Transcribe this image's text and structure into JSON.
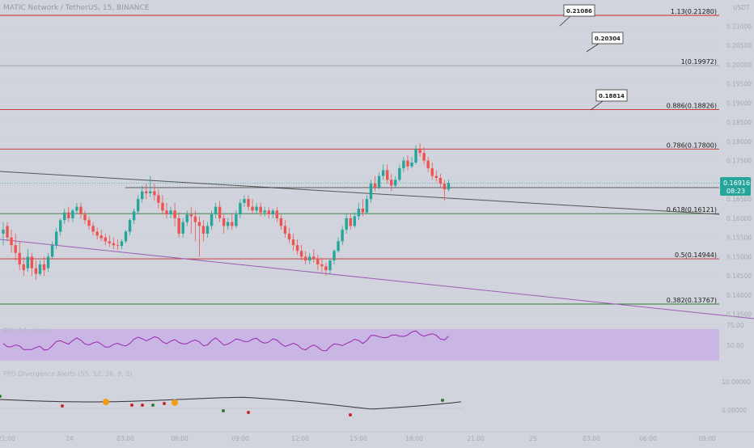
{
  "header": {
    "symbol_title": "MATIC Network / TetherUS, 15, BINANCE",
    "currency": "USDT"
  },
  "colors": {
    "background": "#d1d4dc",
    "fib_red": "#c62828",
    "fib_green": "#2e7d32",
    "fib_gray": "#9e9e9e",
    "candle_up": "#26a69a",
    "candle_down": "#ef5350",
    "trendline_dark": "#555555",
    "trendline_purple": "#9c5fb5",
    "rsi_line": "#9c27b0",
    "rsi_band": "#c9b6e4",
    "price_badge": "#26a69a",
    "ppo_line": "#333333"
  },
  "price_badge": {
    "price": "0.16916",
    "countdown": "08:23"
  },
  "fib_levels": [
    {
      "label": "1.13(0.21280)",
      "price": 0.2128,
      "color": "#c62828"
    },
    {
      "label": "1(0.19972)",
      "price": 0.19972,
      "color": "#9e9e9e"
    },
    {
      "label": "0.886(0.18826)",
      "price": 0.18826,
      "color": "#c62828"
    },
    {
      "label": "0.786(0.17800)",
      "price": 0.178,
      "color": "#c62828"
    },
    {
      "label": "0.618(0.16121)",
      "price": 0.16121,
      "color": "#2e7d32"
    },
    {
      "label": "0.5(0.14944)",
      "price": 0.14944,
      "color": "#c62828"
    },
    {
      "label": "0.382(0.13767)",
      "price": 0.13767,
      "color": "#2e7d32"
    }
  ],
  "callouts": [
    {
      "text": "0.21086"
    },
    {
      "text": "0.20304"
    },
    {
      "text": "0.18814"
    }
  ],
  "right_axis_ticks": [
    "0.21000",
    "0.20500",
    "0.20000",
    "0.19500",
    "0.19000",
    "0.18500",
    "0.18000",
    "0.17500",
    "0.17000",
    "0.16500",
    "0.16000",
    "0.15500",
    "0.15000",
    "0.14500",
    "0.14000",
    "0.13500"
  ],
  "time_axis_ticks": [
    "21:00",
    "24",
    "03:00",
    "06:00",
    "09:00",
    "12:00",
    "15:00",
    "18:00",
    "21:00",
    "25",
    "03:00",
    "06:00",
    "09:00"
  ],
  "rsi": {
    "title": "RSI (14, close)",
    "axis": [
      "75.00",
      "50.00"
    ]
  },
  "ppo": {
    "title": "PPO Divergence Alerts (55, 12, 26, 9, 2)",
    "axis": [
      "10.00000",
      "0.00000"
    ]
  },
  "chart_data": {
    "type": "candlestick",
    "timeframe": "15",
    "y_axis_range": [
      0.1322,
      0.2165
    ],
    "last_price": 0.16916,
    "candles": [
      [
        0.156,
        0.159,
        0.157,
        0.153
      ],
      [
        0.158,
        0.159,
        0.155,
        0.154
      ],
      [
        0.155,
        0.157,
        0.153,
        0.151
      ],
      [
        0.153,
        0.156,
        0.151,
        0.149
      ],
      [
        0.151,
        0.154,
        0.148,
        0.1465
      ],
      [
        0.148,
        0.15,
        0.1465,
        0.145
      ],
      [
        0.147,
        0.152,
        0.15,
        0.146
      ],
      [
        0.15,
        0.151,
        0.147,
        0.145
      ],
      [
        0.147,
        0.149,
        0.1455,
        0.144
      ],
      [
        0.1455,
        0.149,
        0.148,
        0.145
      ],
      [
        0.148,
        0.15,
        0.1465,
        0.145
      ],
      [
        0.147,
        0.151,
        0.15,
        0.146
      ],
      [
        0.15,
        0.154,
        0.153,
        0.1495
      ],
      [
        0.153,
        0.1575,
        0.1565,
        0.152
      ],
      [
        0.1565,
        0.16,
        0.1595,
        0.1555
      ],
      [
        0.1595,
        0.1625,
        0.1615,
        0.1585
      ],
      [
        0.1615,
        0.163,
        0.16,
        0.159
      ],
      [
        0.16,
        0.1625,
        0.162,
        0.159
      ],
      [
        0.162,
        0.164,
        0.163,
        0.161
      ],
      [
        0.163,
        0.164,
        0.161,
        0.16
      ],
      [
        0.161,
        0.162,
        0.1595,
        0.1585
      ],
      [
        0.1595,
        0.1605,
        0.158,
        0.157
      ],
      [
        0.158,
        0.159,
        0.1565,
        0.1555
      ],
      [
        0.1565,
        0.1575,
        0.1555,
        0.1545
      ],
      [
        0.1555,
        0.157,
        0.1548,
        0.154
      ],
      [
        0.155,
        0.156,
        0.154,
        0.153
      ],
      [
        0.154,
        0.1555,
        0.1535,
        0.1525
      ],
      [
        0.1535,
        0.155,
        0.153,
        0.152
      ],
      [
        0.153,
        0.1545,
        0.1528,
        0.1518
      ],
      [
        0.1528,
        0.1545,
        0.154,
        0.152
      ],
      [
        0.154,
        0.157,
        0.1565,
        0.1535
      ],
      [
        0.1565,
        0.16,
        0.1595,
        0.1555
      ],
      [
        0.1595,
        0.1625,
        0.1618,
        0.1585
      ],
      [
        0.1618,
        0.166,
        0.165,
        0.161
      ],
      [
        0.165,
        0.1685,
        0.167,
        0.164
      ],
      [
        0.167,
        0.169,
        0.1665,
        0.165
      ],
      [
        0.1665,
        0.171,
        0.167,
        0.1655
      ],
      [
        0.167,
        0.169,
        0.166,
        0.1645
      ],
      [
        0.166,
        0.1675,
        0.164,
        0.1625
      ],
      [
        0.164,
        0.166,
        0.162,
        0.161
      ],
      [
        0.162,
        0.164,
        0.161,
        0.16
      ],
      [
        0.161,
        0.163,
        0.162,
        0.16
      ],
      [
        0.162,
        0.164,
        0.16,
        0.158
      ],
      [
        0.16,
        0.1615,
        0.156,
        0.155
      ],
      [
        0.156,
        0.16,
        0.159,
        0.155
      ],
      [
        0.159,
        0.162,
        0.161,
        0.158
      ],
      [
        0.161,
        0.163,
        0.1605,
        0.156
      ],
      [
        0.1605,
        0.162,
        0.159,
        0.154
      ],
      [
        0.159,
        0.1605,
        0.158,
        0.15
      ],
      [
        0.158,
        0.1595,
        0.156,
        0.154
      ],
      [
        0.156,
        0.159,
        0.158,
        0.155
      ],
      [
        0.158,
        0.162,
        0.161,
        0.157
      ],
      [
        0.161,
        0.164,
        0.163,
        0.16
      ],
      [
        0.163,
        0.1645,
        0.16,
        0.159
      ],
      [
        0.16,
        0.161,
        0.158,
        0.156
      ],
      [
        0.158,
        0.16,
        0.159,
        0.157
      ],
      [
        0.159,
        0.161,
        0.158,
        0.157
      ],
      [
        0.158,
        0.162,
        0.161,
        0.1575
      ],
      [
        0.161,
        0.165,
        0.164,
        0.16
      ],
      [
        0.164,
        0.166,
        0.165,
        0.163
      ],
      [
        0.165,
        0.166,
        0.163,
        0.162
      ],
      [
        0.163,
        0.165,
        0.162,
        0.161
      ],
      [
        0.162,
        0.164,
        0.163,
        0.161
      ],
      [
        0.163,
        0.164,
        0.1615,
        0.1605
      ],
      [
        0.1615,
        0.163,
        0.162,
        0.1605
      ],
      [
        0.162,
        0.163,
        0.161,
        0.16
      ],
      [
        0.161,
        0.1625,
        0.162,
        0.16
      ],
      [
        0.162,
        0.163,
        0.16,
        0.159
      ],
      [
        0.16,
        0.161,
        0.158,
        0.157
      ],
      [
        0.158,
        0.1595,
        0.156,
        0.155
      ],
      [
        0.156,
        0.1575,
        0.1545,
        0.1535
      ],
      [
        0.1545,
        0.156,
        0.153,
        0.1515
      ],
      [
        0.153,
        0.1545,
        0.1515,
        0.1505
      ],
      [
        0.1515,
        0.153,
        0.15,
        0.149
      ],
      [
        0.15,
        0.1515,
        0.149,
        0.148
      ],
      [
        0.149,
        0.151,
        0.15,
        0.148
      ],
      [
        0.15,
        0.152,
        0.1495,
        0.1485
      ],
      [
        0.1495,
        0.1505,
        0.148,
        0.1465
      ],
      [
        0.148,
        0.1495,
        0.1475,
        0.146
      ],
      [
        0.1475,
        0.1485,
        0.1465,
        0.145
      ],
      [
        0.1465,
        0.1495,
        0.149,
        0.1455
      ],
      [
        0.149,
        0.152,
        0.1515,
        0.148
      ],
      [
        0.1515,
        0.155,
        0.154,
        0.151
      ],
      [
        0.154,
        0.158,
        0.157,
        0.153
      ],
      [
        0.157,
        0.161,
        0.16,
        0.156
      ],
      [
        0.16,
        0.161,
        0.158,
        0.157
      ],
      [
        0.158,
        0.1615,
        0.1605,
        0.1575
      ],
      [
        0.1605,
        0.164,
        0.1625,
        0.1595
      ],
      [
        0.1625,
        0.165,
        0.1615,
        0.1605
      ],
      [
        0.1615,
        0.166,
        0.165,
        0.161
      ],
      [
        0.165,
        0.17,
        0.169,
        0.164
      ],
      [
        0.169,
        0.171,
        0.168,
        0.167
      ],
      [
        0.168,
        0.172,
        0.171,
        0.1675
      ],
      [
        0.171,
        0.174,
        0.1725,
        0.17
      ],
      [
        0.1725,
        0.174,
        0.17,
        0.169
      ],
      [
        0.17,
        0.1715,
        0.1685,
        0.167
      ],
      [
        0.1685,
        0.171,
        0.17,
        0.168
      ],
      [
        0.17,
        0.174,
        0.173,
        0.1695
      ],
      [
        0.173,
        0.176,
        0.175,
        0.172
      ],
      [
        0.175,
        0.1765,
        0.1735,
        0.1725
      ],
      [
        0.1735,
        0.176,
        0.1745,
        0.173
      ],
      [
        0.1745,
        0.179,
        0.178,
        0.174
      ],
      [
        0.178,
        0.1795,
        0.177,
        0.176
      ],
      [
        0.177,
        0.1785,
        0.175,
        0.174
      ],
      [
        0.175,
        0.176,
        0.173,
        0.172
      ],
      [
        0.173,
        0.1745,
        0.171,
        0.17
      ],
      [
        0.171,
        0.1725,
        0.1705,
        0.1695
      ],
      [
        0.1705,
        0.1715,
        0.169,
        0.168
      ],
      [
        0.169,
        0.17,
        0.1675,
        0.1645
      ],
      [
        0.1675,
        0.17,
        0.1692,
        0.167
      ]
    ]
  }
}
